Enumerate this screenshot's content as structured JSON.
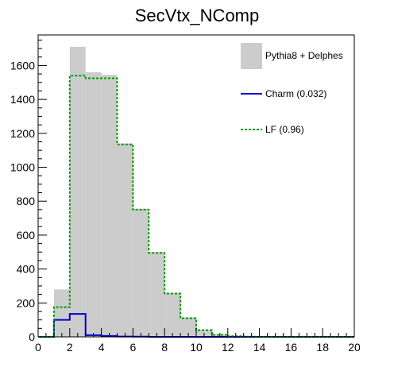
{
  "chart_data": {
    "type": "bar",
    "title": "SecVtx_NComp",
    "xlabel": "",
    "ylabel": "",
    "xlim": [
      0,
      20
    ],
    "ylim": [
      0,
      1780
    ],
    "bin_edges": [
      0,
      1,
      2,
      3,
      4,
      5,
      6,
      7,
      8,
      9,
      10,
      11,
      12,
      13,
      14,
      15,
      16,
      17,
      18,
      19,
      20
    ],
    "x_ticks": [
      0,
      2,
      4,
      6,
      8,
      10,
      12,
      14,
      16,
      18,
      20
    ],
    "y_ticks": [
      0,
      200,
      400,
      600,
      800,
      1000,
      1200,
      1400,
      1600
    ],
    "grid": false,
    "legend_position": "top-right",
    "series": [
      {
        "name": "Pythia8 + Delphes",
        "style": "filled",
        "color": "#cccccc",
        "values": [
          0,
          280,
          1710,
          1560,
          1545,
          1140,
          755,
          500,
          260,
          115,
          42,
          15,
          5,
          2,
          1,
          0,
          0,
          0,
          0,
          0
        ]
      },
      {
        "name": "Charm (0.032)",
        "style": "line",
        "color": "#0000cc",
        "values": [
          0,
          100,
          135,
          10,
          5,
          2,
          1,
          0,
          0,
          0,
          0,
          0,
          0,
          0,
          0,
          0,
          0,
          0,
          0,
          0
        ]
      },
      {
        "name": "LF (0.96)",
        "style": "dashed",
        "color": "#009900",
        "values": [
          0,
          175,
          1540,
          1525,
          1525,
          1135,
          750,
          495,
          255,
          110,
          40,
          12,
          4,
          1,
          0,
          0,
          0,
          0,
          0,
          0
        ]
      }
    ]
  }
}
